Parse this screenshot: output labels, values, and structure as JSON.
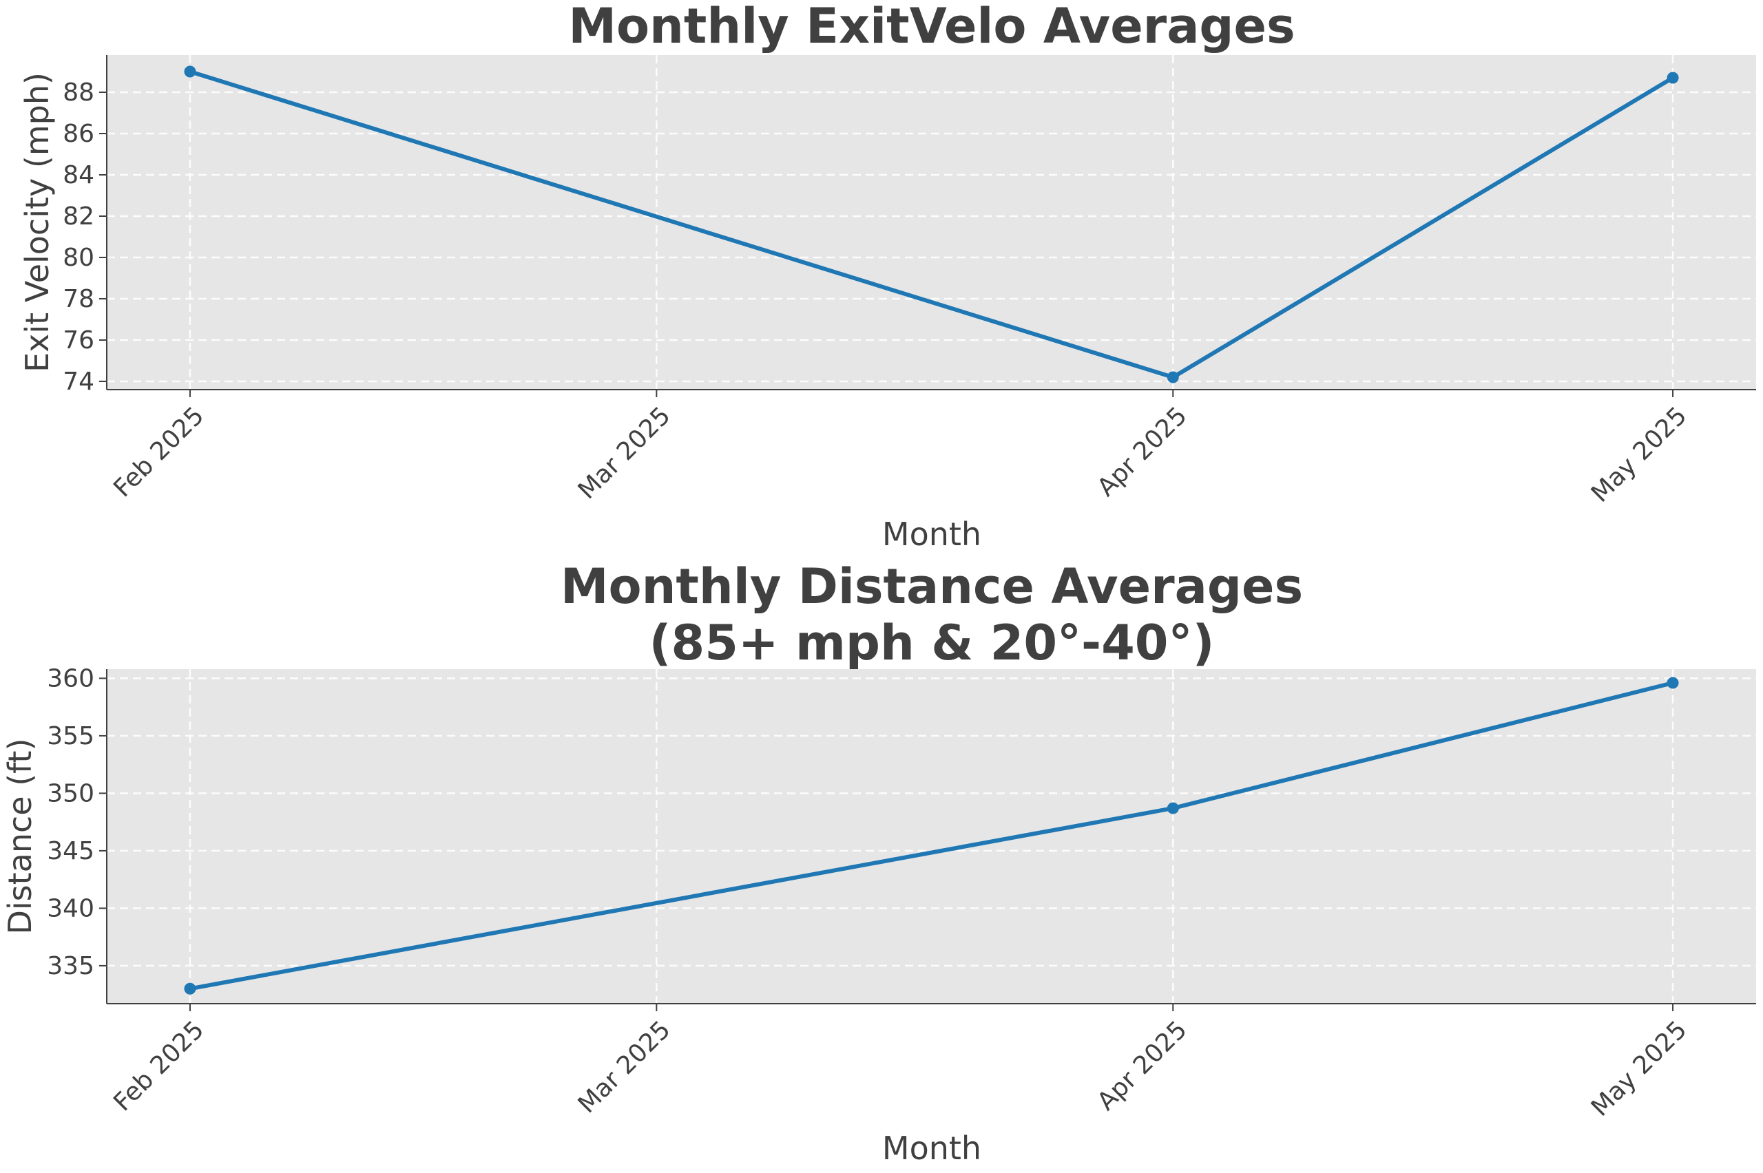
{
  "colors": {
    "line": "#1f77b4",
    "plot_bg": "#e6e6e6",
    "grid": "#ffffff",
    "text": "#404040",
    "axis": "#404040"
  },
  "chart_data": [
    {
      "type": "line",
      "title": "Monthly ExitVelo Averages",
      "xlabel": "Month",
      "ylabel": "Exit Velocity (mph)",
      "x_ticks": [
        "Feb 2025",
        "Mar 2025",
        "Apr 2025",
        "May 2025"
      ],
      "x": [
        "2025-02-01",
        "2025-04-01",
        "2025-05-01"
      ],
      "series": [
        {
          "values": [
            89.0,
            74.2,
            88.7
          ]
        }
      ],
      "xlim": [
        "2025-01-27",
        "2025-05-06"
      ],
      "ylim": [
        73.6,
        89.8
      ],
      "y_ticks": [
        74,
        76,
        78,
        80,
        82,
        84,
        86,
        88
      ],
      "grid": true,
      "legend": "none"
    },
    {
      "type": "line",
      "title": "Monthly Distance Averages\n(85+ mph & 20°-40°)",
      "title_lines": [
        "Monthly Distance Averages",
        "(85+ mph & 20°-40°)"
      ],
      "xlabel": "Month",
      "ylabel": "Distance (ft)",
      "x_ticks": [
        "Feb 2025",
        "Mar 2025",
        "Apr 2025",
        "May 2025"
      ],
      "x": [
        "2025-02-01",
        "2025-04-01",
        "2025-05-01"
      ],
      "series": [
        {
          "values": [
            333.0,
            348.7,
            359.6
          ]
        }
      ],
      "xlim": [
        "2025-01-27",
        "2025-05-06"
      ],
      "ylim": [
        331.7,
        360.8
      ],
      "y_ticks": [
        335,
        340,
        345,
        350,
        355,
        360
      ],
      "grid": true,
      "legend": "none"
    }
  ]
}
